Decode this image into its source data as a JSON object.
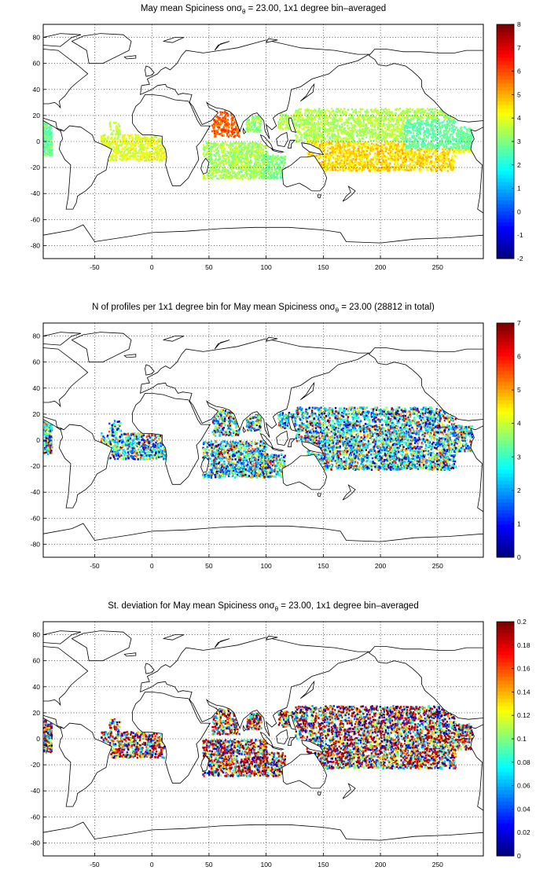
{
  "panels": [
    {
      "title_pre": "May mean Spiciness onσ",
      "title_sub": "θ",
      "title_post": " = 23.00, 1x1 degree bin–averaged",
      "colorbar": {
        "min": -2,
        "max": 8,
        "ticks": [
          "8",
          "7",
          "6",
          "5",
          "4",
          "3",
          "2",
          "1",
          "0",
          "-1",
          "-2"
        ]
      },
      "field": "mean_spiciness"
    },
    {
      "title_pre": "N of profiles per 1x1 degree bin for May mean Spiciness onσ",
      "title_sub": "θ",
      "title_post": " = 23.00 (28812 in total)",
      "colorbar": {
        "min": 0,
        "max": 7,
        "ticks": [
          "7",
          "6",
          "5",
          "4",
          "3",
          "2",
          "1",
          "0"
        ]
      },
      "field": "profile_count"
    },
    {
      "title_pre": "St. deviation for May mean Spiciness onσ",
      "title_sub": "θ",
      "title_post": " = 23.00, 1x1 degree bin–averaged",
      "colorbar": {
        "min": 0,
        "max": 0.2,
        "ticks": [
          "0.2",
          "0.18",
          "0.16",
          "0.14",
          "0.12",
          "0.1",
          "0.08",
          "0.06",
          "0.04",
          "0.02",
          "0"
        ]
      },
      "field": "std_spiciness"
    }
  ],
  "axes": {
    "x_range": [
      -95,
      290
    ],
    "y_range": [
      -90,
      90
    ],
    "x_ticks": [
      "-50",
      "0",
      "50",
      "100",
      "150",
      "200",
      "250"
    ],
    "y_ticks": [
      "80",
      "60",
      "40",
      "20",
      "0",
      "-20",
      "-40",
      "-60",
      "-80"
    ],
    "grid": "dotted"
  },
  "colormap": "jet"
}
